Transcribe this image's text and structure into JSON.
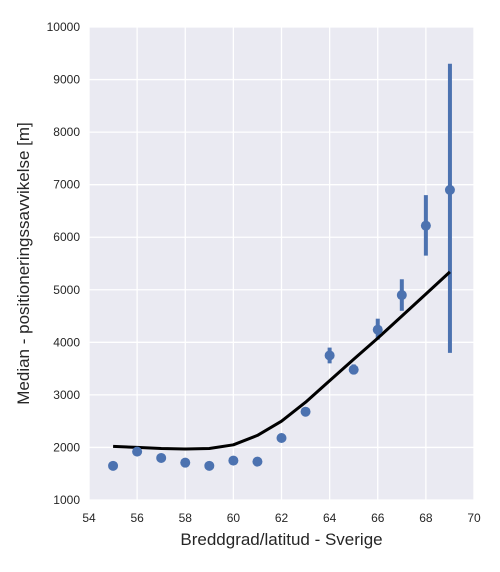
{
  "chart_data": {
    "type": "scatter",
    "title": "",
    "xlabel": "Breddgrad/latitud - Sverige",
    "ylabel": "Median - positioneringssavvikelse [m]",
    "xlim": [
      54,
      70
    ],
    "ylim": [
      1000,
      10000
    ],
    "xticks": [
      54,
      56,
      58,
      60,
      62,
      64,
      66,
      68,
      70
    ],
    "yticks": [
      1000,
      2000,
      3000,
      4000,
      5000,
      6000,
      7000,
      8000,
      9000,
      10000
    ],
    "grid": true,
    "colors": {
      "background": "#eaeaf2",
      "grid": "#ffffff",
      "points": "#4c72b0",
      "fit_line": "#000000",
      "text": "#262626"
    },
    "series": [
      {
        "kind": "points_with_error_bars",
        "x": [
          55,
          56,
          57,
          58,
          59,
          60,
          61,
          62,
          63,
          64,
          65,
          66,
          67,
          68,
          69
        ],
        "y": [
          1650,
          1920,
          1800,
          1710,
          1650,
          1750,
          1730,
          2180,
          2680,
          3750,
          3480,
          4240,
          4900,
          6220,
          6900
        ],
        "y_low": [
          1650,
          1920,
          1800,
          1710,
          1650,
          1750,
          1730,
          2180,
          2650,
          3600,
          3400,
          4050,
          4600,
          5650,
          3800
        ],
        "y_high": [
          1650,
          1920,
          1800,
          1710,
          1650,
          1750,
          1730,
          2180,
          2730,
          3900,
          3580,
          4450,
          5200,
          6800,
          9300
        ]
      },
      {
        "kind": "fit_line",
        "x": [
          55,
          56,
          57,
          58,
          59,
          60,
          61,
          62,
          63,
          64,
          65,
          66,
          67,
          68,
          69
        ],
        "y": [
          2020,
          2000,
          1980,
          1970,
          1980,
          2050,
          2230,
          2500,
          2860,
          3270,
          3680,
          4080,
          4500,
          4920,
          5340
        ]
      }
    ]
  }
}
